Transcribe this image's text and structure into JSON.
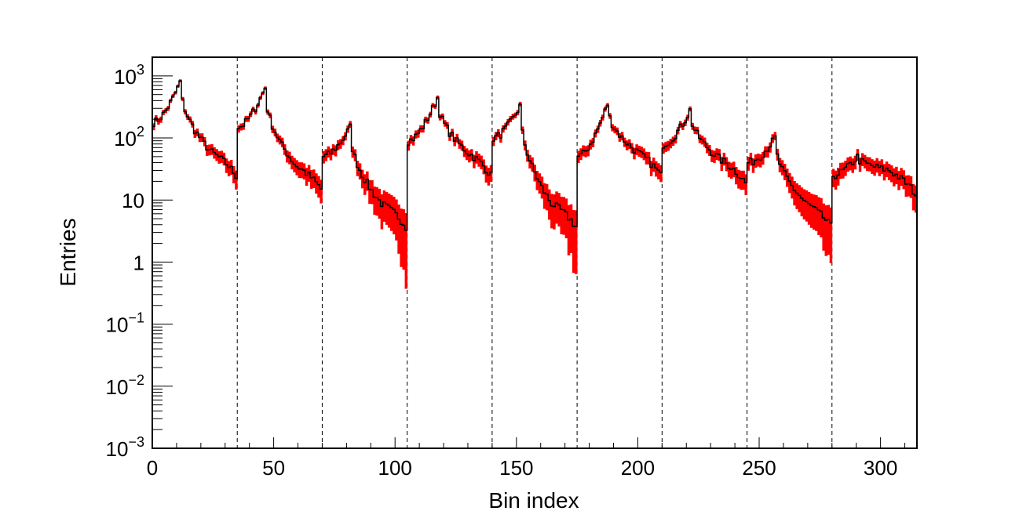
{
  "chart_data": {
    "type": "histogram",
    "xlabel": "Bin index",
    "ylabel": "Entries",
    "x_scale": "linear",
    "y_scale": "log",
    "xlim": [
      0,
      315
    ],
    "ylim": [
      0.001,
      2000
    ],
    "x_ticks": [
      0,
      50,
      100,
      150,
      200,
      250,
      300
    ],
    "x_tick_labels": [
      "0",
      "50",
      "100",
      "150",
      "200",
      "250",
      "300"
    ],
    "y_tick_labels": [
      {
        "value": 1000,
        "base": "10",
        "exp": "3"
      },
      {
        "value": 100,
        "base": "10",
        "exp": "2"
      },
      {
        "value": 10,
        "base": "10",
        "exp": ""
      },
      {
        "value": 1,
        "base": "1",
        "exp": ""
      },
      {
        "value": 0.1,
        "base": "10",
        "exp": "−1"
      },
      {
        "value": 0.01,
        "base": "10",
        "exp": "−2"
      },
      {
        "value": 0.001,
        "base": "10",
        "exp": "−3"
      }
    ],
    "segment_boundaries": [
      35,
      70,
      105,
      140,
      175,
      210,
      245,
      280
    ],
    "grid": false,
    "legend": "none",
    "colors": {
      "error_band": "#ff0000",
      "histogram_line": "#000000",
      "boundary_line": "#000000"
    },
    "segments": [
      {
        "start": 0,
        "start_value": 180,
        "peak_bin": 11,
        "peak_value": 800,
        "end_value": 20
      },
      {
        "start": 35,
        "start_value": 150,
        "peak_bin": 46,
        "peak_value": 650,
        "end_value": 12
      },
      {
        "start": 70,
        "start_value": 50,
        "peak_bin": 81,
        "peak_value": 150,
        "end_value": 3
      },
      {
        "start": 105,
        "start_value": 90,
        "peak_bin": 117,
        "peak_value": 450,
        "end_value": 20
      },
      {
        "start": 140,
        "start_value": 100,
        "peak_bin": 151,
        "peak_value": 330,
        "end_value": 3
      },
      {
        "start": 175,
        "start_value": 50,
        "peak_bin": 187,
        "peak_value": 350,
        "end_value": 20
      },
      {
        "start": 210,
        "start_value": 80,
        "peak_bin": 221,
        "peak_value": 280,
        "end_value": 15
      },
      {
        "start": 245,
        "start_value": 40,
        "peak_bin": 256,
        "peak_value": 100,
        "end_value": 3
      },
      {
        "start": 280,
        "start_value": 25,
        "peak_bin": 290,
        "peak_value": 50,
        "end_value": 10
      }
    ]
  }
}
